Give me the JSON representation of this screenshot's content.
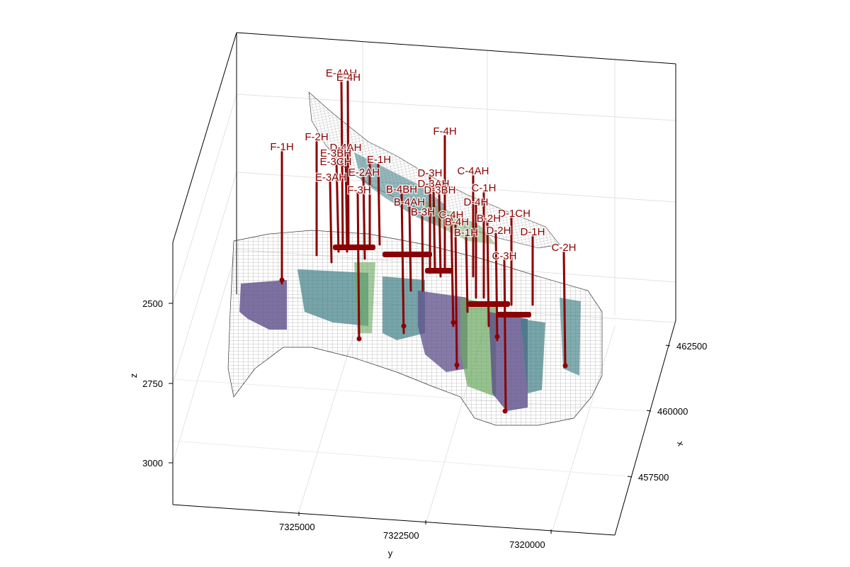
{
  "chart_data": {
    "type": "3d-surface",
    "xlabel": "x",
    "ylabel": "y",
    "zlabel": "z",
    "x_ticks": [
      "462500",
      "460000",
      "457500"
    ],
    "y_ticks": [
      "7325000",
      "7322500",
      "7320000"
    ],
    "z_ticks": [
      "2500",
      "2750",
      "3000"
    ],
    "wells": [
      "E-4AH",
      "E-4H",
      "F-4H",
      "F-1H",
      "F-2H",
      "D-4AH",
      "F-3H",
      "E-1H",
      "E-3BH",
      "E-3CH",
      "E-2AH",
      "E-3AH",
      "D-3H",
      "C-4AH",
      "D-3AH",
      "B-4BH",
      "D-3BH",
      "C-1H",
      "B-4AH",
      "D-4H",
      "B-3H",
      "C-4H",
      "B-4H",
      "D-1CH",
      "B-2H",
      "D-1H",
      "B-1H",
      "D-2H",
      "C-3H",
      "C-2H"
    ],
    "colors": {
      "well": "#8b0000",
      "surface_purple": "#5d4e8a",
      "surface_teal": "#3e7f85",
      "surface_green": "#6aa85f",
      "mesh": "#333333"
    }
  }
}
